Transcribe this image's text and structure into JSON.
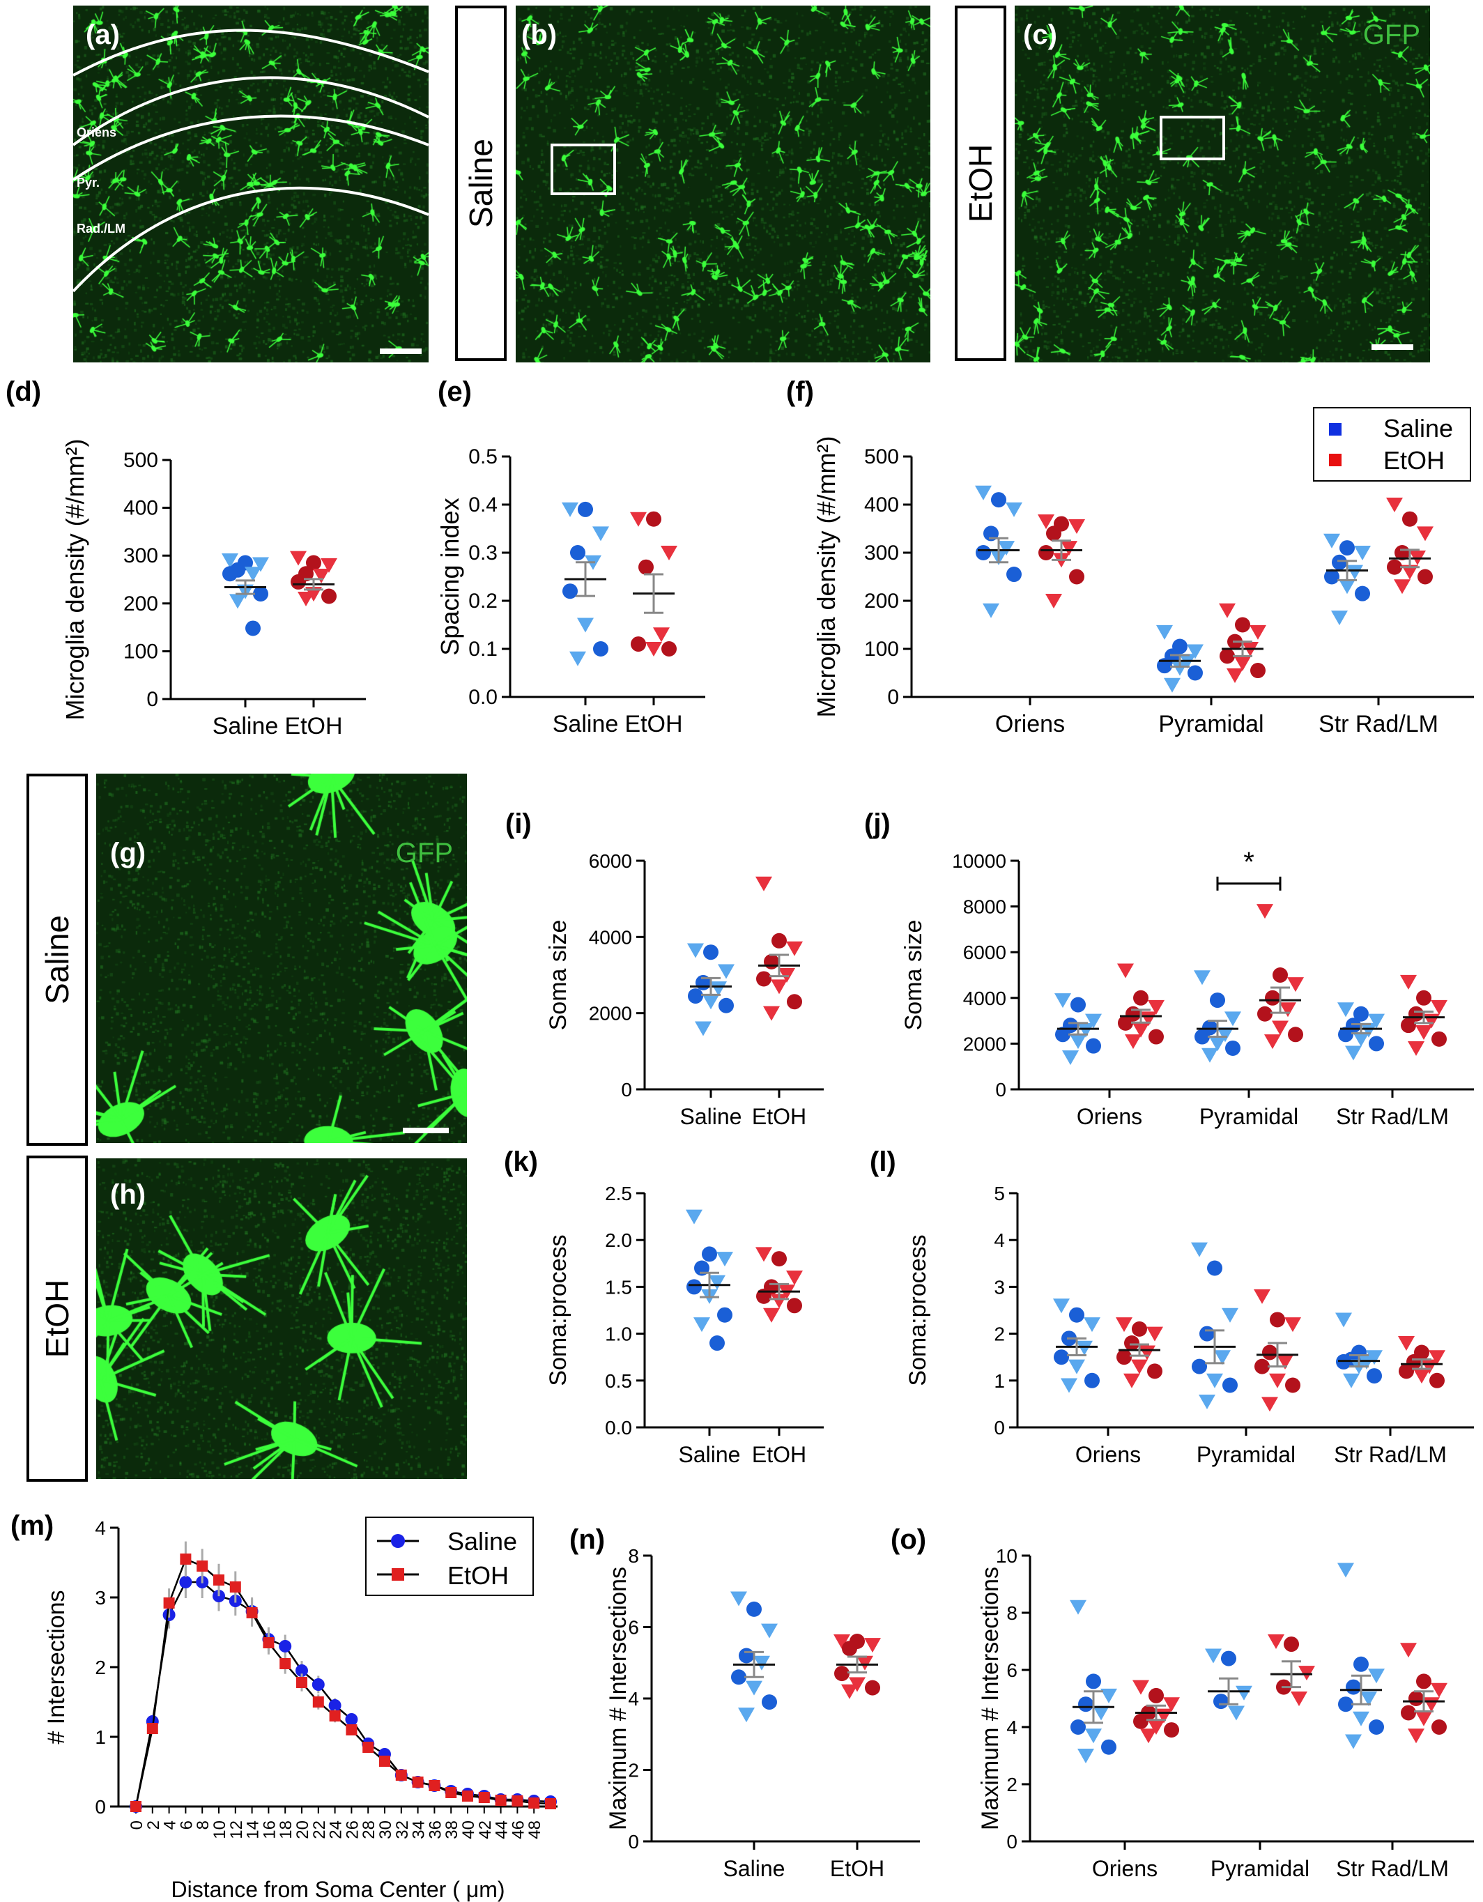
{
  "images": {
    "a": {
      "label": "(a)",
      "layers": [
        "Oriens",
        "Pyr.",
        "Rad./LM"
      ]
    },
    "b": {
      "label": "(b)"
    },
    "c": {
      "label": "(c)",
      "stain": "GFP"
    },
    "g": {
      "label": "(g)",
      "stain": "GFP"
    },
    "h": {
      "label": "(h)"
    }
  },
  "row_labels": {
    "top_saline": "Saline",
    "top_etoh": "EtOH",
    "mid_saline": "Saline",
    "mid_etoh": "EtOH"
  },
  "colors": {
    "saline_dark": "#1a5fd6",
    "saline_light": "#5aa8ee",
    "etoh_dark": "#b3121c",
    "etoh_light": "#e8313d",
    "tissue": "#0b2a0b",
    "cell": "#3cff3c"
  },
  "chart_data": [
    {
      "id": "d",
      "label": "(d)",
      "type": "scatter",
      "xlabel": "",
      "ylabel": "Microglia density (#/mm²)",
      "ylim": [
        0,
        500
      ],
      "yticks": [
        0,
        100,
        200,
        300,
        400,
        500
      ],
      "categories": [
        "Saline",
        "EtOH"
      ],
      "series": [
        {
          "name": "Saline",
          "x": "Saline",
          "mean": 234,
          "sem": 14,
          "points": [
            290,
            285,
            282,
            270,
            262,
            262,
            225,
            220,
            205,
            148
          ]
        },
        {
          "name": "EtOH",
          "x": "EtOH",
          "mean": 240,
          "sem": 11,
          "points": [
            295,
            285,
            280,
            262,
            258,
            245,
            220,
            215,
            210
          ]
        }
      ]
    },
    {
      "id": "e",
      "label": "(e)",
      "type": "scatter",
      "xlabel": "",
      "ylabel": "Spacing index",
      "ylim": [
        0,
        0.5
      ],
      "yticks": [
        "0.0",
        "0.1",
        "0.2",
        "0.3",
        "0.4",
        "0.5"
      ],
      "categories": [
        "Saline",
        "EtOH"
      ],
      "series": [
        {
          "name": "Saline",
          "x": "Saline",
          "mean": 0.245,
          "sem": 0.035,
          "points": [
            0.39,
            0.39,
            0.34,
            0.3,
            0.28,
            0.22,
            0.15,
            0.1,
            0.08
          ]
        },
        {
          "name": "EtOH",
          "x": "EtOH",
          "mean": 0.215,
          "sem": 0.04,
          "points": [
            0.37,
            0.37,
            0.3,
            0.27,
            0.13,
            0.11,
            0.1,
            0.1
          ]
        }
      ]
    },
    {
      "id": "f",
      "label": "(f)",
      "type": "scatter",
      "xlabel": "",
      "ylabel": "Microglia density (#/mm²)",
      "ylim": [
        0,
        500
      ],
      "yticks": [
        0,
        100,
        200,
        300,
        400,
        500
      ],
      "categories": [
        "Oriens",
        "Pyramidal",
        "Str Rad/LM"
      ],
      "legend": [
        "Saline",
        "EtOH"
      ],
      "series": [
        {
          "name": "Saline",
          "groups": [
            {
              "x": "Oriens",
              "mean": 305,
              "sem": 25,
              "points": [
                425,
                410,
                390,
                340,
                310,
                300,
                290,
                255,
                180
              ]
            },
            {
              "x": "Pyramidal",
              "mean": 75,
              "sem": 12,
              "points": [
                135,
                105,
                95,
                85,
                75,
                65,
                60,
                50,
                25
              ]
            },
            {
              "x": "Str Rad/LM",
              "mean": 263,
              "sem": 20,
              "points": [
                325,
                310,
                300,
                280,
                260,
                250,
                230,
                215,
                165
              ]
            }
          ]
        },
        {
          "name": "EtOH",
          "groups": [
            {
              "x": "Oriens",
              "mean": 305,
              "sem": 20,
              "points": [
                365,
                360,
                355,
                340,
                310,
                300,
                285,
                250,
                200
              ]
            },
            {
              "x": "Pyramidal",
              "mean": 100,
              "sem": 15,
              "points": [
                180,
                150,
                135,
                115,
                100,
                85,
                70,
                55,
                45
              ]
            },
            {
              "x": "Str Rad/LM",
              "mean": 288,
              "sem": 18,
              "points": [
                400,
                370,
                340,
                300,
                290,
                270,
                260,
                250,
                230
              ]
            }
          ]
        }
      ]
    },
    {
      "id": "i",
      "label": "(i)",
      "type": "scatter",
      "xlabel": "",
      "ylabel": "Soma size",
      "ylim": [
        0,
        6000
      ],
      "yticks": [
        0,
        2000,
        4000,
        6000
      ],
      "categories": [
        "Saline",
        "EtOH"
      ],
      "series": [
        {
          "name": "Saline",
          "x": "Saline",
          "mean": 2700,
          "sem": 220,
          "points": [
            3650,
            3600,
            3100,
            2800,
            2650,
            2450,
            2300,
            2200,
            1600
          ]
        },
        {
          "name": "EtOH",
          "x": "EtOH",
          "mean": 3250,
          "sem": 280,
          "points": [
            5400,
            3900,
            3700,
            3350,
            3000,
            2900,
            2700,
            2300,
            2000
          ]
        }
      ]
    },
    {
      "id": "j",
      "label": "(j)",
      "type": "scatter",
      "xlabel": "",
      "ylabel": "Soma size",
      "ylim": [
        0,
        10000
      ],
      "yticks": [
        0,
        2000,
        4000,
        6000,
        8000,
        10000
      ],
      "categories": [
        "Oriens",
        "Pyramidal",
        "Str Rad/LM"
      ],
      "annotation": "*",
      "series": [
        {
          "name": "Saline",
          "groups": [
            {
              "x": "Oriens",
              "mean": 2650,
              "sem": 250,
              "points": [
                3900,
                3700,
                3000,
                2800,
                2600,
                2400,
                2100,
                1900,
                1400
              ]
            },
            {
              "x": "Pyramidal",
              "mean": 2650,
              "sem": 350,
              "points": [
                4900,
                3900,
                3100,
                2700,
                2400,
                2300,
                2000,
                1800,
                1500
              ]
            },
            {
              "x": "Str Rad/LM",
              "mean": 2650,
              "sem": 200,
              "points": [
                3500,
                3300,
                3000,
                2800,
                2600,
                2400,
                2200,
                2000,
                1600
              ]
            }
          ]
        },
        {
          "name": "EtOH",
          "groups": [
            {
              "x": "Oriens",
              "mean": 3200,
              "sem": 280,
              "points": [
                5200,
                4000,
                3600,
                3300,
                3100,
                2900,
                2600,
                2300,
                2100
              ]
            },
            {
              "x": "Pyramidal",
              "mean": 3900,
              "sem": 550,
              "points": [
                7800,
                5000,
                4600,
                4000,
                3500,
                3300,
                2700,
                2400,
                2100
              ]
            },
            {
              "x": "Str Rad/LM",
              "mean": 3150,
              "sem": 250,
              "points": [
                4700,
                4000,
                3600,
                3300,
                3000,
                2800,
                2500,
                2200,
                1800
              ]
            }
          ]
        }
      ]
    },
    {
      "id": "k",
      "label": "(k)",
      "type": "scatter",
      "xlabel": "",
      "ylabel": "Soma:process",
      "ylim": [
        0,
        2.5
      ],
      "yticks": [
        "0.0",
        "0.5",
        "1.0",
        "1.5",
        "2.0",
        "2.5"
      ],
      "categories": [
        "Saline",
        "EtOH"
      ],
      "series": [
        {
          "name": "Saline",
          "x": "Saline",
          "mean": 1.52,
          "sem": 0.13,
          "points": [
            2.25,
            1.85,
            1.8,
            1.7,
            1.55,
            1.5,
            1.4,
            1.2,
            1.1,
            0.9
          ]
        },
        {
          "name": "EtOH",
          "x": "EtOH",
          "mean": 1.45,
          "sem": 0.08,
          "points": [
            1.85,
            1.8,
            1.6,
            1.5,
            1.45,
            1.4,
            1.35,
            1.3,
            1.2
          ]
        }
      ]
    },
    {
      "id": "l",
      "label": "(l)",
      "type": "scatter",
      "xlabel": "",
      "ylabel": "Soma:process",
      "ylim": [
        0,
        5
      ],
      "yticks": [
        0,
        1,
        2,
        3,
        4,
        5
      ],
      "categories": [
        "Oriens",
        "Pyramidal",
        "Str Rad/LM"
      ],
      "series": [
        {
          "name": "Saline",
          "groups": [
            {
              "x": "Oriens",
              "mean": 1.72,
              "sem": 0.18,
              "points": [
                2.6,
                2.4,
                2.2,
                1.9,
                1.7,
                1.5,
                1.3,
                1.0,
                0.9
              ]
            },
            {
              "x": "Pyramidal",
              "mean": 1.72,
              "sem": 0.35,
              "points": [
                3.8,
                3.4,
                2.4,
                2.0,
                1.5,
                1.3,
                1.0,
                0.9,
                0.55
              ]
            },
            {
              "x": "Str Rad/LM",
              "mean": 1.42,
              "sem": 0.12,
              "points": [
                2.3,
                1.6,
                1.5,
                1.45,
                1.4,
                1.4,
                1.3,
                1.1,
                1.0
              ]
            }
          ]
        },
        {
          "name": "EtOH",
          "groups": [
            {
              "x": "Oriens",
              "mean": 1.65,
              "sem": 0.12,
              "points": [
                2.2,
                2.1,
                2.0,
                1.8,
                1.6,
                1.5,
                1.3,
                1.2,
                1.0
              ]
            },
            {
              "x": "Pyramidal",
              "mean": 1.55,
              "sem": 0.25,
              "points": [
                2.8,
                2.3,
                2.2,
                1.6,
                1.4,
                1.3,
                1.0,
                0.9,
                0.5
              ]
            },
            {
              "x": "Str Rad/LM",
              "mean": 1.35,
              "sem": 0.1,
              "points": [
                1.8,
                1.6,
                1.5,
                1.4,
                1.3,
                1.2,
                1.1,
                1.0
              ]
            }
          ]
        }
      ]
    },
    {
      "id": "m",
      "label": "(m)",
      "type": "line",
      "xlabel": "Distance from Soma Center ( μm)",
      "ylabel": "# Intersections",
      "ylim": [
        0,
        4
      ],
      "xlim": [
        0,
        50
      ],
      "yticks": [
        0,
        1,
        2,
        3,
        4
      ],
      "xticks": [
        0,
        2,
        4,
        6,
        8,
        10,
        12,
        14,
        16,
        18,
        20,
        22,
        24,
        26,
        28,
        30,
        32,
        34,
        36,
        38,
        40,
        42,
        44,
        46,
        48
      ],
      "legend": [
        "Saline",
        "EtOH"
      ],
      "x": [
        0,
        2,
        4,
        6,
        8,
        10,
        12,
        14,
        16,
        18,
        20,
        22,
        24,
        26,
        28,
        30,
        32,
        34,
        36,
        38,
        40,
        42,
        44,
        46,
        48,
        50
      ],
      "series": [
        {
          "name": "Saline",
          "values": [
            0,
            1.22,
            2.75,
            3.22,
            3.22,
            3.02,
            2.95,
            2.8,
            2.4,
            2.3,
            1.95,
            1.75,
            1.45,
            1.25,
            0.9,
            0.75,
            0.45,
            0.35,
            0.3,
            0.22,
            0.18,
            0.15,
            0.1,
            0.1,
            0.08,
            0.07
          ]
        },
        {
          "name": "EtOH",
          "values": [
            0,
            1.12,
            2.92,
            3.55,
            3.45,
            3.25,
            3.15,
            2.78,
            2.35,
            2.05,
            1.78,
            1.5,
            1.3,
            1.1,
            0.85,
            0.65,
            0.45,
            0.35,
            0.3,
            0.2,
            0.15,
            0.13,
            0.09,
            0.08,
            0.05,
            0.04
          ]
        }
      ],
      "error": 0.25
    },
    {
      "id": "n",
      "label": "(n)",
      "type": "scatter",
      "xlabel": "",
      "ylabel": "Maximum # Intersections",
      "ylim": [
        0,
        8
      ],
      "yticks": [
        0,
        2,
        4,
        6,
        8
      ],
      "categories": [
        "Saline",
        "EtOH"
      ],
      "series": [
        {
          "name": "Saline",
          "x": "Saline",
          "mean": 4.95,
          "sem": 0.35,
          "points": [
            6.8,
            6.5,
            5.9,
            5.2,
            5.0,
            4.6,
            4.3,
            3.9,
            3.55
          ]
        },
        {
          "name": "EtOH",
          "x": "EtOH",
          "mean": 4.95,
          "sem": 0.22,
          "points": [
            5.6,
            5.6,
            5.5,
            5.4,
            5.0,
            4.7,
            4.4,
            4.3,
            4.2
          ]
        }
      ]
    },
    {
      "id": "o",
      "label": "(o)",
      "type": "scatter",
      "xlabel": "",
      "ylabel": "Maximum # Intersections",
      "ylim": [
        0,
        10
      ],
      "yticks": [
        0,
        2,
        4,
        6,
        8,
        10
      ],
      "categories": [
        "Oriens",
        "Pyramidal",
        "Str Rad/LM"
      ],
      "series": [
        {
          "name": "Saline",
          "groups": [
            {
              "x": "Oriens",
              "mean": 4.7,
              "sem": 0.55,
              "points": [
                8.2,
                5.6,
                5.1,
                4.8,
                4.5,
                4.0,
                3.7,
                3.3,
                3.0
              ]
            },
            {
              "x": "Pyramidal",
              "mean": 5.25,
              "sem": 0.45,
              "points": [
                6.5,
                6.4,
                5.2,
                4.9,
                4.5
              ]
            },
            {
              "x": "Str Rad/LM",
              "mean": 5.3,
              "sem": 0.5,
              "points": [
                9.5,
                6.2,
                5.8,
                5.4,
                5.0,
                4.8,
                4.3,
                4.0,
                3.5
              ]
            }
          ]
        },
        {
          "name": "EtOH",
          "groups": [
            {
              "x": "Oriens",
              "mean": 4.5,
              "sem": 0.25,
              "points": [
                5.4,
                5.1,
                4.8,
                4.5,
                4.4,
                4.2,
                4.0,
                3.9,
                3.7
              ]
            },
            {
              "x": "Pyramidal",
              "mean": 5.85,
              "sem": 0.45,
              "points": [
                7.0,
                6.9,
                5.9,
                5.4,
                5.0
              ]
            },
            {
              "x": "Str Rad/LM",
              "mean": 4.9,
              "sem": 0.35,
              "points": [
                6.7,
                5.6,
                5.3,
                5.0,
                4.8,
                4.5,
                4.3,
                4.0,
                3.7
              ]
            }
          ]
        }
      ]
    }
  ]
}
